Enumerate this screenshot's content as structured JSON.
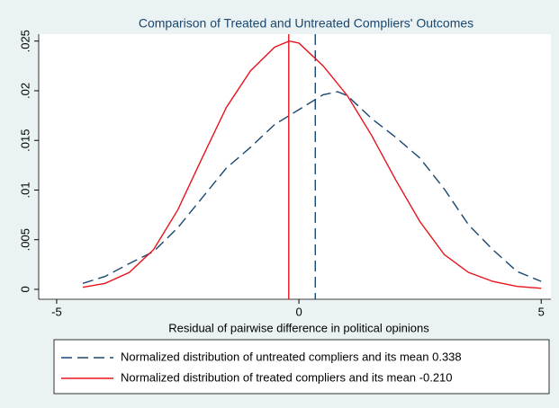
{
  "chart_data": {
    "type": "line",
    "title": "Comparison of Treated and Untreated Compliers' Outcomes",
    "x_label": "Residual of pairwise difference in political opinions",
    "x": [
      -4.46,
      -4.0,
      -3.5,
      -3.0,
      -2.5,
      -2.0,
      -1.5,
      -1.0,
      -0.5,
      -0.2,
      0,
      0.5,
      0.8,
      1.0,
      1.5,
      2.0,
      2.5,
      3.0,
      3.5,
      4.0,
      4.5,
      5.0
    ],
    "series": [
      {
        "name": "Normalized distribution of untreated compliers and its mean 0.338",
        "color": "#1a476f",
        "dash": true,
        "mean": 0.338,
        "values": [
          0.0006,
          0.0013,
          0.0026,
          0.0038,
          0.0062,
          0.0092,
          0.0122,
          0.0143,
          0.0166,
          0.0175,
          0.0181,
          0.0196,
          0.0199,
          0.0195,
          0.0172,
          0.0153,
          0.0132,
          0.0101,
          0.0065,
          0.004,
          0.0018,
          0.0008
        ]
      },
      {
        "name": "Normalized distribution of treated compliers and its mean -0.210",
        "color": "#e8141c",
        "dash": false,
        "mean": -0.21,
        "values": [
          0.0002,
          0.0006,
          0.0017,
          0.004,
          0.008,
          0.0132,
          0.0183,
          0.022,
          0.0244,
          0.025,
          0.0248,
          0.0225,
          0.0207,
          0.0195,
          0.0155,
          0.011,
          0.0068,
          0.0035,
          0.0017,
          0.0008,
          0.0003,
          0.0001
        ]
      }
    ],
    "xlim": [
      -5.37,
      5.2
    ],
    "ylim": [
      -0.001,
      0.0257
    ],
    "xticks": [
      -5,
      0,
      5
    ],
    "yticks": [
      0,
      {
        "value": 0.005,
        "label": ".005"
      },
      {
        "value": 0.01,
        "label": ".01"
      },
      {
        "value": 0.015,
        "label": ".015"
      },
      {
        "value": 0.02,
        "label": ".02"
      },
      {
        "value": 0.025,
        "label": ".025"
      }
    ]
  }
}
